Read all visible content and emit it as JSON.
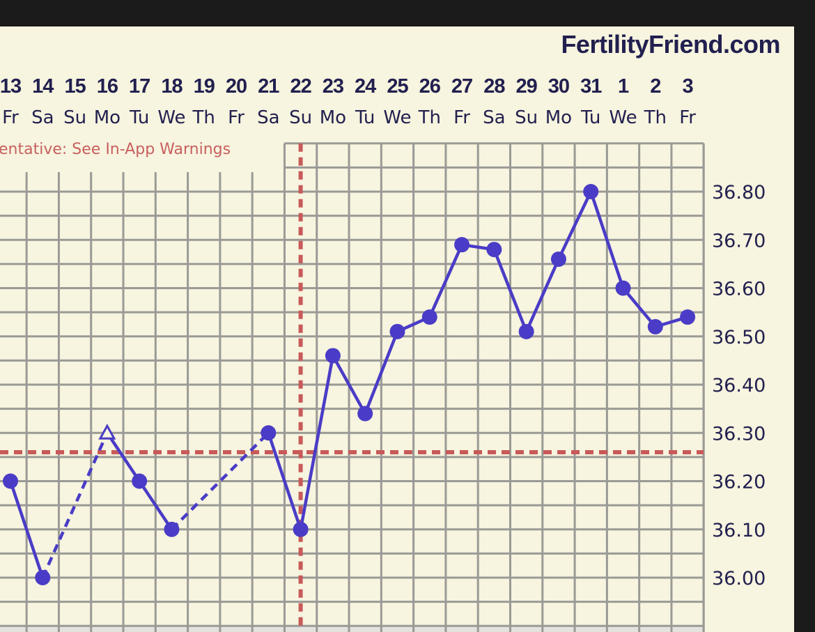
{
  "brand": "FertilityFriend.com",
  "warning": "entative: See In-App Warnings",
  "colors": {
    "background": "#f7f4df",
    "grid": "#9a9a96",
    "temperature_line": "#4a3cc6",
    "coverline": "#c85a5a",
    "ovulation_line": "#c85a5a",
    "text": "#22204f",
    "warning_text": "#c8605e"
  },
  "chart_data": {
    "type": "line",
    "title": "",
    "xlabel": "",
    "ylabel": "",
    "categories": [
      "13",
      "14",
      "15",
      "16",
      "17",
      "18",
      "19",
      "20",
      "21",
      "22",
      "23",
      "24",
      "25",
      "26",
      "27",
      "28",
      "29",
      "30",
      "31",
      "1",
      "2",
      "3"
    ],
    "weekdays": [
      "Fr",
      "Sa",
      "Su",
      "Mo",
      "Tu",
      "We",
      "Th",
      "Fr",
      "Sa",
      "Su",
      "Mo",
      "Tu",
      "We",
      "Th",
      "Fr",
      "Sa",
      "Su",
      "Mo",
      "Tu",
      "We",
      "Th",
      "Fr"
    ],
    "series": [
      {
        "values": [
          36.2,
          36.0,
          null,
          36.3,
          36.2,
          36.1,
          null,
          null,
          36.3,
          36.1,
          36.46,
          36.34,
          36.51,
          36.54,
          36.69,
          36.68,
          36.51,
          36.66,
          36.8,
          36.6,
          36.52,
          36.54
        ],
        "markers": [
          "dot",
          "dot",
          null,
          "open-triangle",
          "dot",
          "dot",
          null,
          null,
          "dot",
          "dot",
          "dot",
          "dot",
          "dot",
          "dot",
          "dot",
          "dot",
          "dot",
          "dot",
          "dot",
          "dot",
          "dot",
          "dot"
        ],
        "gaps_drawn_as": "dashed"
      }
    ],
    "yticks": [
      "36.80",
      "36.70",
      "36.60",
      "36.50",
      "36.40",
      "36.30",
      "36.20",
      "36.10",
      "36.00"
    ],
    "ylim": [
      35.9,
      36.9
    ],
    "grid": true,
    "grid_step": 0.05,
    "coverline": 36.26,
    "ovulation_day": "22"
  }
}
